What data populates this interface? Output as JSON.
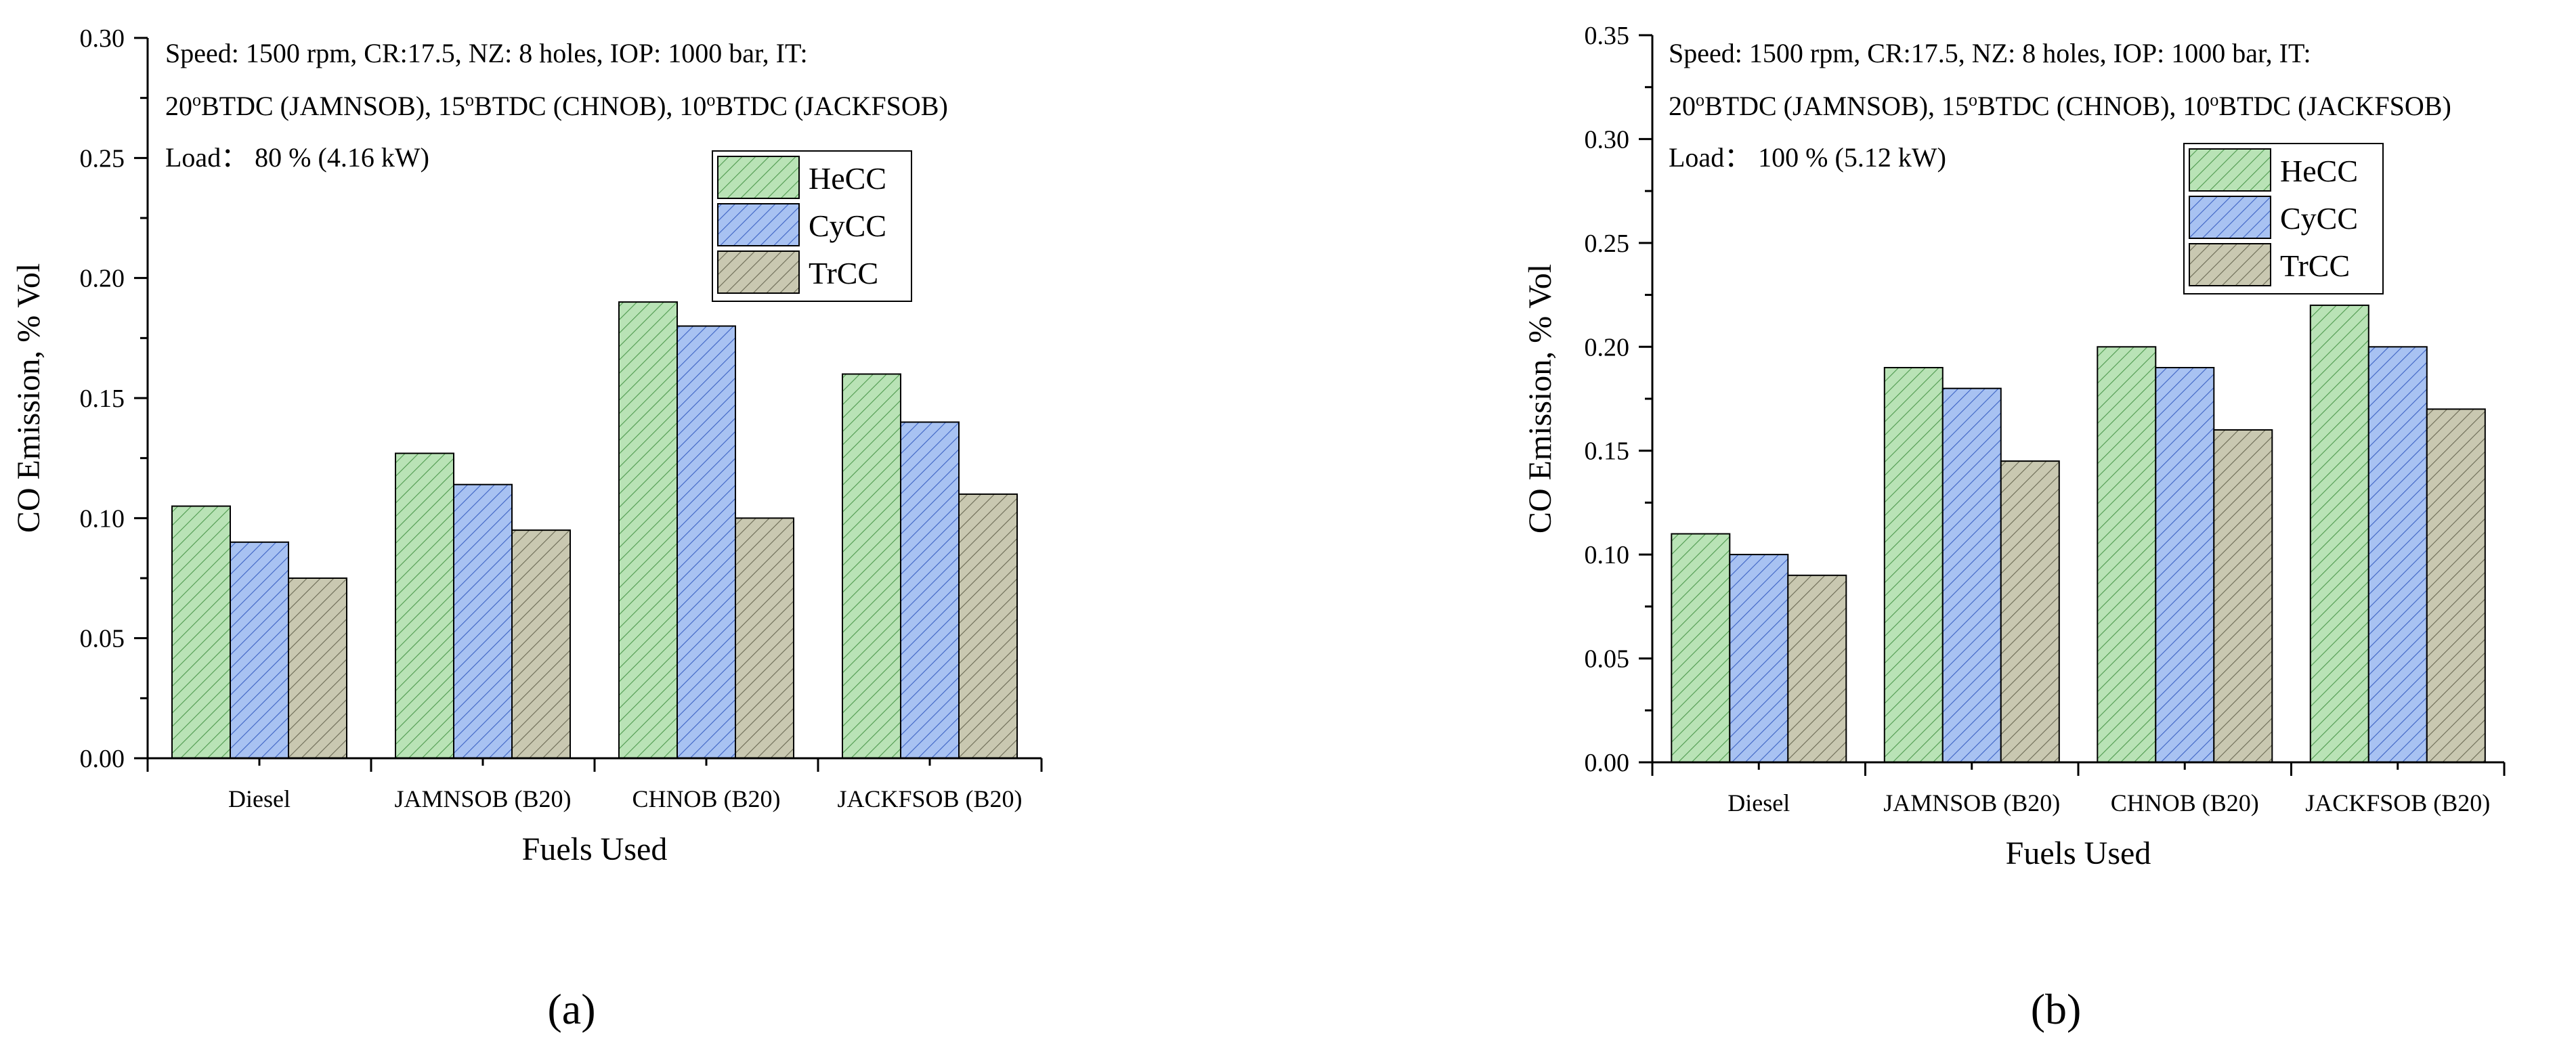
{
  "figure": {
    "panels": [
      {
        "label": "(a)",
        "annotation": {
          "line1": "Speed: 1500 rpm, CR:17.5, NZ: 8 holes, IOP: 1000 bar, IT:",
          "line2": [
            {
              "text": "20"
            },
            {
              "text": "o",
              "sup": true
            },
            {
              "text": "BTDC (JAMNSOB), 15"
            },
            {
              "text": "o",
              "sup": true
            },
            {
              "text": "BTDC (CHNOB), 10"
            },
            {
              "text": "o",
              "sup": true
            },
            {
              "text": "BTDC (JACKFSOB)"
            }
          ],
          "line3": "Load： 80 %  (4.16 kW)"
        }
      },
      {
        "label": "(b)",
        "annotation": {
          "line1": "Speed: 1500 rpm, CR:17.5, NZ: 8 holes, IOP: 1000 bar, IT:",
          "line2": [
            {
              "text": "20"
            },
            {
              "text": "o",
              "sup": true
            },
            {
              "text": "BTDC (JAMNSOB), 15"
            },
            {
              "text": "o",
              "sup": true
            },
            {
              "text": "BTDC (CHNOB), 10"
            },
            {
              "text": "o",
              "sup": true
            },
            {
              "text": "BTDC (JACKFSOB)"
            }
          ],
          "line3": "Load： 100 %  (5.12 kW)"
        }
      }
    ],
    "colors": {
      "HeCC": {
        "fill": "#b9e3b6",
        "hatch": "#4f9a4f"
      },
      "CyCC": {
        "fill": "#a8c2f2",
        "hatch": "#3d63c4"
      },
      "TrCC": {
        "fill": "#c9c8b1",
        "hatch": "#6b6a55"
      }
    }
  },
  "chart_data": [
    {
      "type": "bar",
      "title": "",
      "xlabel": "Fuels Used",
      "ylabel": "CO Emission, % Vol",
      "categories": [
        "Diesel",
        "JAMNSOB (B20)",
        "CHNOB (B20)",
        "JACKFSOB (B20)"
      ],
      "series": [
        {
          "name": "HeCC",
          "values": [
            0.105,
            0.127,
            0.19,
            0.16
          ]
        },
        {
          "name": "CyCC",
          "values": [
            0.09,
            0.114,
            0.18,
            0.14
          ]
        },
        {
          "name": "TrCC",
          "values": [
            0.075,
            0.095,
            0.1,
            0.11
          ]
        }
      ],
      "ylim": [
        0,
        0.3
      ],
      "yticks": [
        0,
        0.05,
        0.1,
        0.15,
        0.2,
        0.25,
        0.3
      ],
      "ytick_labels": [
        "0.00",
        "0.05",
        "0.10",
        "0.15",
        "0.20",
        "0.25",
        "0.30"
      ],
      "legend": "upper-middle",
      "grid": false
    },
    {
      "type": "bar",
      "title": "",
      "xlabel": "Fuels Used",
      "ylabel": "CO Emission, % Vol",
      "categories": [
        "Diesel",
        "JAMNSOB (B20)",
        "CHNOB (B20)",
        "JACKFSOB (B20)"
      ],
      "series": [
        {
          "name": "HeCC",
          "values": [
            0.11,
            0.19,
            0.2,
            0.22
          ]
        },
        {
          "name": "CyCC",
          "values": [
            0.1,
            0.18,
            0.19,
            0.2
          ]
        },
        {
          "name": "TrCC",
          "values": [
            0.09,
            0.145,
            0.16,
            0.17
          ]
        }
      ],
      "ylim": [
        0,
        0.35
      ],
      "yticks": [
        0,
        0.05,
        0.1,
        0.15,
        0.2,
        0.25,
        0.3,
        0.35
      ],
      "ytick_labels": [
        "0.00",
        "0.05",
        "0.10",
        "0.15",
        "0.20",
        "0.25",
        "0.30",
        "0.35"
      ],
      "legend": "upper-middle",
      "grid": false
    }
  ]
}
